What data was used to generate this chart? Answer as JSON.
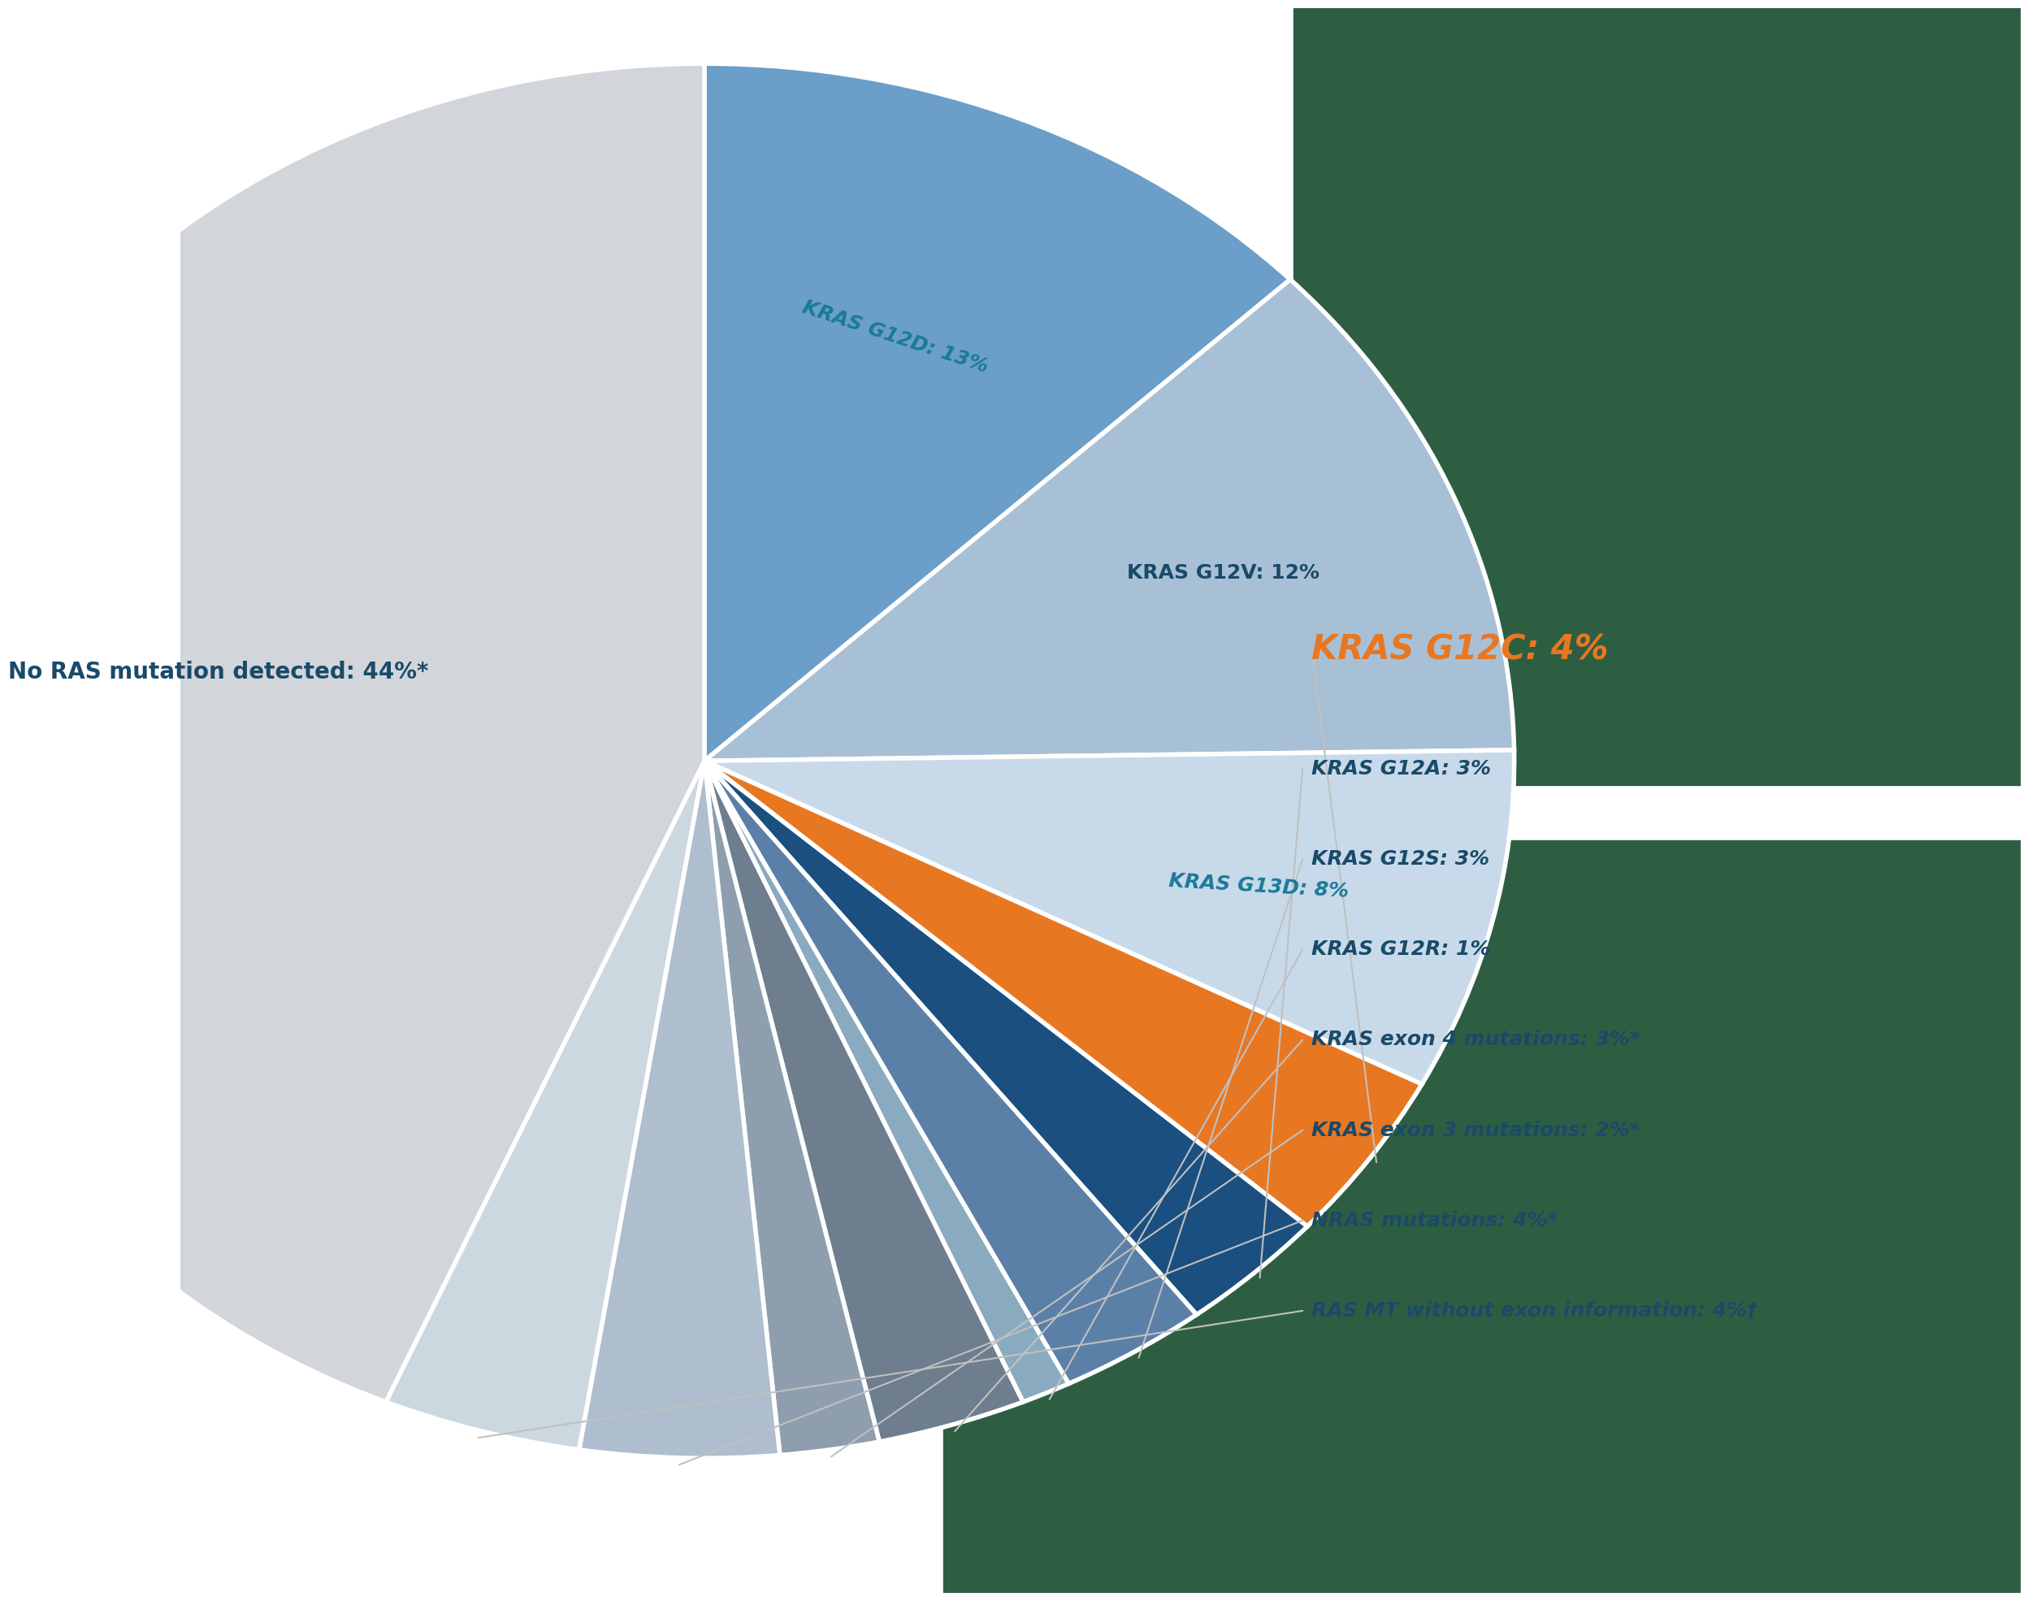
{
  "slices_ordered": [
    {
      "label": "KRAS G12D: 13%",
      "value": 13,
      "color": "#6b9ec8",
      "text_color": "#1a7a9a"
    },
    {
      "label": "KRAS G12V: 12%",
      "value": 12,
      "color": "#a8c0d6",
      "text_color": "#1a5276"
    },
    {
      "label": "KRAS G13D: 8%",
      "value": 8,
      "color": "#c8daea",
      "text_color": "#1a7a9a"
    },
    {
      "label": "KRAS G12C: 4%",
      "value": 4,
      "color": "#e87722",
      "text_color": "#e87722"
    },
    {
      "label": "KRAS G12A: 3%",
      "value": 3,
      "color": "#1a4f80",
      "text_color": "#1a5276"
    },
    {
      "label": "KRAS G12S: 3%",
      "value": 3,
      "color": "#5b80a8",
      "text_color": "#1a5276"
    },
    {
      "label": "KRAS G12R: 1%",
      "value": 1,
      "color": "#8aaac0",
      "text_color": "#1a5276"
    },
    {
      "label": "KRAS exon 4 mutations: 3%*",
      "value": 3,
      "color": "#6e7e8e",
      "text_color": "#1a5276"
    },
    {
      "label": "KRAS exon 3 mutations: 2%*",
      "value": 2,
      "color": "#8e9eae",
      "text_color": "#1a5276"
    },
    {
      "label": "NRAS mutations: 4%*",
      "value": 4,
      "color": "#aebece",
      "text_color": "#1a5276"
    },
    {
      "label": "RAS MT without exon information: 4%†",
      "value": 4,
      "color": "#ccd8e0",
      "text_color": "#1a5276"
    },
    {
      "label": "No RAS mutation detected: 44%*",
      "value": 44,
      "color": "#d2d6da",
      "text_color": "#1a5276"
    }
  ],
  "background_color": "#ffffff",
  "wedge_edge_color": "#ffffff",
  "wedge_linewidth": 4,
  "green_color": "#2e5e42",
  "dark_blue": "#1a3a5c",
  "orange": "#e87722"
}
